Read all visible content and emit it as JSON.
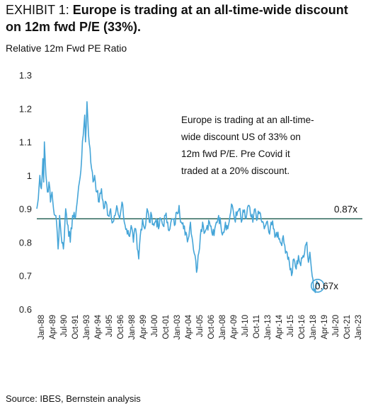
{
  "header": {
    "exhibit": "EXHIBIT 1:",
    "title_line1": "Europe is trading at an all-time-wide discount",
    "title_line2": "on 12m fwd P/E (33%)."
  },
  "subtitle": "Relative 12m Fwd PE Ratio",
  "source": "Source: IBES, Bernstein analysis",
  "colors": {
    "series": "#45a5d8",
    "reference": "#1a5a4c",
    "highlight": "#45a5d8"
  },
  "chart_data": {
    "type": "line",
    "ylim": [
      0.6,
      1.3
    ],
    "yticks": [
      "0.6",
      "0.7",
      "0.8",
      "0.9",
      "1",
      "1.1",
      "1.2",
      "1.3"
    ],
    "xlim": [
      0,
      428
    ],
    "x_tick_labels": [
      "Jan-88",
      "Apr-89",
      "Jul-90",
      "Oct-91",
      "Jan-93",
      "Apr-94",
      "Jul-95",
      "Oct-96",
      "Jan-98",
      "Apr-99",
      "Jul-00",
      "Oct-01",
      "Jan-03",
      "Apr-04",
      "Jul-05",
      "Oct-06",
      "Jan-08",
      "Apr-09",
      "Jul-10",
      "Oct-11",
      "Jan-13",
      "Apr-14",
      "Jul-15",
      "Oct-16",
      "Jan-18",
      "Apr-19",
      "Jul-20",
      "Oct-21",
      "Jan-23"
    ],
    "reference_line": {
      "value": 0.87,
      "label": "0.87x"
    },
    "current": {
      "value": 0.67,
      "label": "0.67x"
    },
    "annotation": [
      "Europe is trading at an all-time-",
      "wide discount US of 33% on",
      "12m fwd P/E. Pre Covid it",
      "traded at a 20% discount."
    ],
    "anchors": [
      [
        0,
        0.9
      ],
      [
        2,
        0.93
      ],
      [
        4,
        1.0
      ],
      [
        6,
        0.96
      ],
      [
        8,
        1.05
      ],
      [
        9,
        0.98
      ],
      [
        10,
        1.1
      ],
      [
        12,
        1.0
      ],
      [
        14,
        0.95
      ],
      [
        16,
        0.98
      ],
      [
        18,
        0.92
      ],
      [
        20,
        0.95
      ],
      [
        22,
        0.9
      ],
      [
        24,
        0.88
      ],
      [
        26,
        0.86
      ],
      [
        28,
        0.78
      ],
      [
        30,
        0.88
      ],
      [
        32,
        0.82
      ],
      [
        35,
        0.78
      ],
      [
        38,
        0.9
      ],
      [
        41,
        0.85
      ],
      [
        44,
        0.8
      ],
      [
        47,
        0.88
      ],
      [
        50,
        0.87
      ],
      [
        53,
        0.92
      ],
      [
        56,
        0.98
      ],
      [
        59,
        1.05
      ],
      [
        61,
        1.12
      ],
      [
        63,
        1.18
      ],
      [
        64,
        1.1
      ],
      [
        66,
        1.22
      ],
      [
        68,
        1.12
      ],
      [
        70,
        1.08
      ],
      [
        72,
        1.02
      ],
      [
        74,
        0.98
      ],
      [
        76,
        1.0
      ],
      [
        79,
        0.95
      ],
      [
        82,
        0.92
      ],
      [
        85,
        0.96
      ],
      [
        88,
        0.9
      ],
      [
        91,
        0.92
      ],
      [
        94,
        0.88
      ],
      [
        97,
        0.9
      ],
      [
        100,
        0.86
      ],
      [
        103,
        0.88
      ],
      [
        106,
        0.9
      ],
      [
        109,
        0.87
      ],
      [
        112,
        0.92
      ],
      [
        115,
        0.86
      ],
      [
        118,
        0.84
      ],
      [
        121,
        0.82
      ],
      [
        124,
        0.85
      ],
      [
        127,
        0.8
      ],
      [
        130,
        0.84
      ],
      [
        132,
        0.78
      ],
      [
        134,
        0.75
      ],
      [
        136,
        0.82
      ],
      [
        139,
        0.87
      ],
      [
        142,
        0.84
      ],
      [
        145,
        0.9
      ],
      [
        148,
        0.86
      ],
      [
        151,
        0.88
      ],
      [
        154,
        0.85
      ],
      [
        157,
        0.87
      ],
      [
        160,
        0.84
      ],
      [
        163,
        0.87
      ],
      [
        166,
        0.85
      ],
      [
        169,
        0.88
      ],
      [
        172,
        0.86
      ],
      [
        175,
        0.84
      ],
      [
        178,
        0.87
      ],
      [
        181,
        0.85
      ],
      [
        184,
        0.89
      ],
      [
        187,
        0.91
      ],
      [
        190,
        0.86
      ],
      [
        193,
        0.84
      ],
      [
        196,
        0.83
      ],
      [
        199,
        0.81
      ],
      [
        202,
        0.86
      ],
      [
        205,
        0.8
      ],
      [
        208,
        0.76
      ],
      [
        210,
        0.71
      ],
      [
        212,
        0.76
      ],
      [
        215,
        0.82
      ],
      [
        218,
        0.86
      ],
      [
        221,
        0.83
      ],
      [
        224,
        0.85
      ],
      [
        227,
        0.86
      ],
      [
        230,
        0.83
      ],
      [
        233,
        0.82
      ],
      [
        236,
        0.86
      ],
      [
        239,
        0.88
      ],
      [
        242,
        0.85
      ],
      [
        245,
        0.83
      ],
      [
        248,
        0.86
      ],
      [
        251,
        0.84
      ],
      [
        254,
        0.88
      ],
      [
        257,
        0.91
      ],
      [
        260,
        0.87
      ],
      [
        263,
        0.88
      ],
      [
        266,
        0.9
      ],
      [
        269,
        0.86
      ],
      [
        272,
        0.89
      ],
      [
        275,
        0.87
      ],
      [
        278,
        0.91
      ],
      [
        281,
        0.88
      ],
      [
        284,
        0.86
      ],
      [
        287,
        0.9
      ],
      [
        290,
        0.87
      ],
      [
        293,
        0.89
      ],
      [
        296,
        0.86
      ],
      [
        299,
        0.84
      ],
      [
        302,
        0.86
      ],
      [
        305,
        0.83
      ],
      [
        308,
        0.86
      ],
      [
        311,
        0.84
      ],
      [
        314,
        0.82
      ],
      [
        317,
        0.83
      ],
      [
        320,
        0.8
      ],
      [
        323,
        0.81
      ],
      [
        326,
        0.79
      ],
      [
        329,
        0.77
      ],
      [
        332,
        0.74
      ],
      [
        335,
        0.7
      ],
      [
        338,
        0.75
      ],
      [
        341,
        0.72
      ],
      [
        344,
        0.76
      ],
      [
        347,
        0.73
      ],
      [
        350,
        0.76
      ],
      [
        353,
        0.79
      ],
      [
        355,
        0.8
      ],
      [
        357,
        0.74
      ],
      [
        359,
        0.77
      ],
      [
        361,
        0.72
      ],
      [
        363,
        0.69
      ],
      [
        365,
        0.66
      ],
      [
        367,
        0.67
      ],
      [
        369,
        0.68
      ],
      [
        371,
        0.67
      ]
    ]
  }
}
